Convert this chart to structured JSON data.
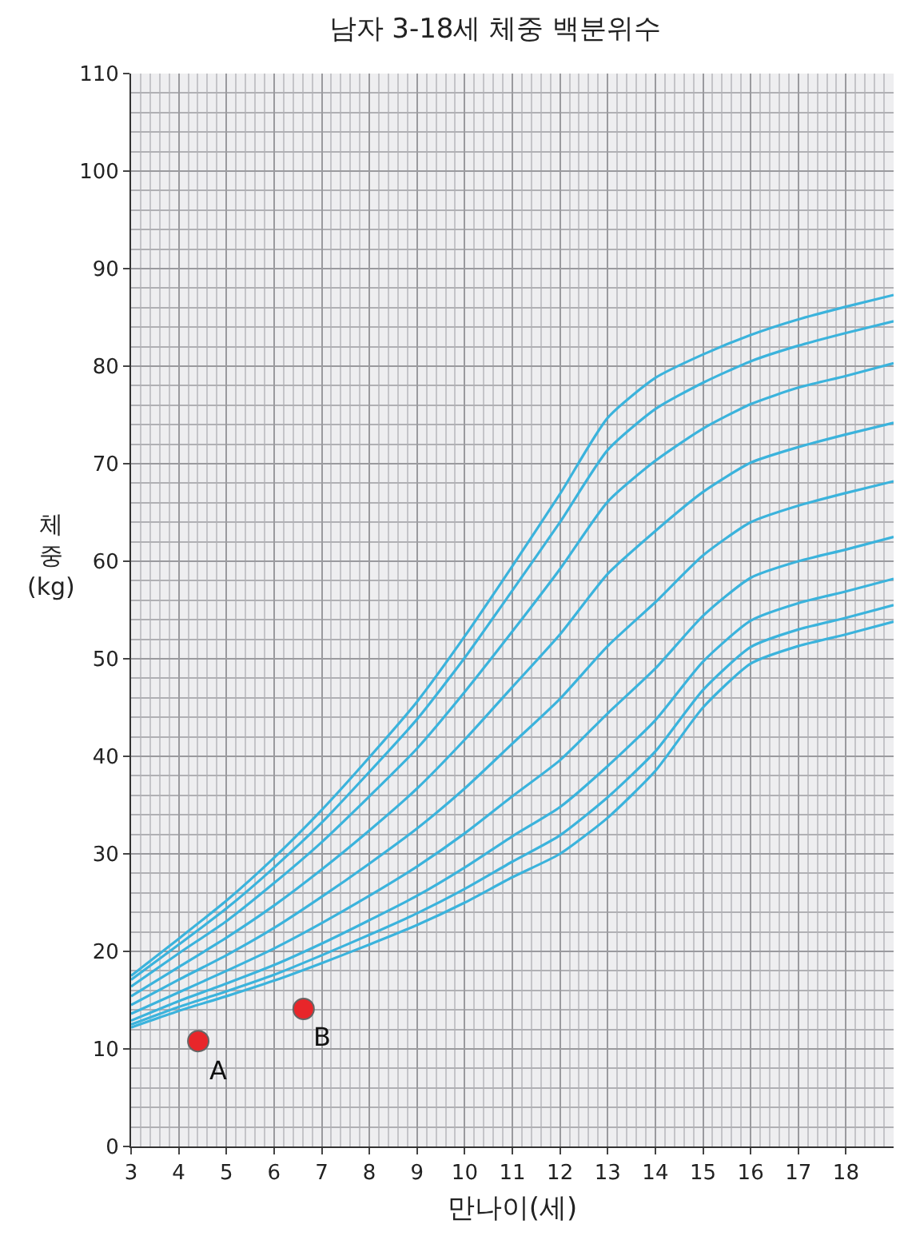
{
  "chart_data": {
    "type": "line",
    "title": "남자 3-18세 체중 백분위수",
    "xlabel": "만나이(세)",
    "ylabel": "체\n중\n(kg)",
    "x": [
      3,
      4,
      5,
      6,
      7,
      8,
      9,
      10,
      11,
      12,
      13,
      14,
      15,
      16,
      17,
      18,
      19
    ],
    "xlim": [
      3,
      19
    ],
    "xticks": [
      3,
      4,
      5,
      6,
      7,
      8,
      9,
      10,
      11,
      12,
      13,
      14,
      15,
      16,
      17,
      18
    ],
    "ylim": [
      0,
      110
    ],
    "yticks": [
      0,
      10,
      20,
      30,
      40,
      50,
      60,
      70,
      80,
      90,
      100,
      110
    ],
    "grid": true,
    "marker": "none",
    "line_style": "solid",
    "series": [
      {
        "color": "#3bb3dc",
        "values": [
          17.5,
          21.3,
          25.2,
          29.6,
          34.5,
          39.9,
          45.6,
          52.3,
          59.5,
          66.9,
          74.7,
          78.8,
          81.2,
          83.2,
          84.8,
          86.1,
          87.3
        ]
      },
      {
        "color": "#3bb3dc",
        "values": [
          17.1,
          20.7,
          24.4,
          28.6,
          33.2,
          38.4,
          43.8,
          50.1,
          57.0,
          64.0,
          71.4,
          75.6,
          78.3,
          80.5,
          82.1,
          83.4,
          84.6
        ]
      },
      {
        "color": "#3bb3dc",
        "values": [
          16.4,
          19.8,
          23.1,
          27.0,
          31.2,
          35.9,
          40.8,
          46.6,
          52.8,
          59.2,
          66.1,
          70.3,
          73.6,
          76.1,
          77.8,
          79.0,
          80.3
        ]
      },
      {
        "color": "#3bb3dc",
        "values": [
          15.4,
          18.4,
          21.4,
          24.7,
          28.4,
          32.4,
          36.7,
          41.7,
          47.1,
          52.5,
          58.7,
          63.1,
          67.1,
          70.1,
          71.7,
          73.0,
          74.2
        ]
      },
      {
        "color": "#3bb3dc",
        "values": [
          14.5,
          17.1,
          19.6,
          22.4,
          25.6,
          29.0,
          32.6,
          36.7,
          41.3,
          45.9,
          51.3,
          55.8,
          60.6,
          64.0,
          65.7,
          67.0,
          68.2
        ]
      },
      {
        "color": "#3bb3dc",
        "values": [
          13.6,
          15.8,
          18.0,
          20.3,
          22.9,
          25.7,
          28.7,
          32.1,
          35.9,
          39.6,
          44.4,
          49.0,
          54.4,
          58.3,
          60.0,
          61.2,
          62.5
        ]
      },
      {
        "color": "#3bb3dc",
        "values": [
          12.9,
          14.9,
          16.7,
          18.6,
          20.8,
          23.2,
          25.7,
          28.6,
          31.8,
          34.8,
          39.0,
          43.7,
          49.7,
          53.9,
          55.7,
          56.9,
          58.2
        ]
      },
      {
        "color": "#3bb3dc",
        "values": [
          12.5,
          14.3,
          15.9,
          17.6,
          19.6,
          21.7,
          23.9,
          26.4,
          29.2,
          31.9,
          35.8,
          40.5,
          46.8,
          51.2,
          53.0,
          54.2,
          55.5
        ]
      },
      {
        "color": "#3bb3dc",
        "values": [
          12.2,
          13.9,
          15.4,
          17.0,
          18.8,
          20.7,
          22.7,
          25.0,
          27.6,
          30.0,
          33.7,
          38.5,
          45.0,
          49.5,
          51.3,
          52.5,
          53.8
        ]
      },
      {
        "type": "scatter",
        "marker": "circle",
        "color": "#e8262a",
        "x": [
          4.41,
          6.62
        ],
        "values": [
          10.8,
          14.1
        ]
      }
    ],
    "annotations": [
      {
        "text": "A",
        "x": 4.41,
        "y": 10.8
      },
      {
        "text": "B",
        "x": 6.62,
        "y": 14.1
      }
    ]
  }
}
